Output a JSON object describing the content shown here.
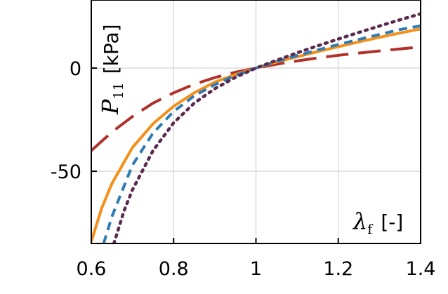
{
  "chart_data": {
    "type": "line",
    "xlim": [
      0.6,
      1.4
    ],
    "ylim": [
      -85,
      33
    ],
    "x_ticks": [
      0.6,
      0.8,
      1.0,
      1.2,
      1.4
    ],
    "x_tick_labels": [
      "0.6",
      "0.8",
      "1",
      "1.2",
      "1.4"
    ],
    "y_ticks": [
      0,
      -50
    ],
    "y_tick_labels": [
      "0",
      "-50"
    ],
    "ylabel": {
      "symbol": "P",
      "subscript": "11",
      "unit": "[kPa]"
    },
    "xlabel": {
      "symbol": "λ",
      "subscript": "f",
      "unit": "[-]"
    },
    "grid": true,
    "series": [
      {
        "color": "#b2302a",
        "dash": "32,14",
        "width": 4,
        "x": [
          0.6,
          0.65,
          0.7,
          0.75,
          0.8,
          0.85,
          0.9,
          0.95,
          1.0,
          1.05,
          1.1,
          1.15,
          1.2,
          1.25,
          1.3,
          1.35,
          1.4
        ],
        "y": [
          -40,
          -31,
          -23.5,
          -17,
          -12,
          -7.8,
          -4.6,
          -2.0,
          0,
          1.9,
          3.5,
          4.9,
          6.2,
          7.3,
          8.3,
          9.3,
          10.2
        ]
      },
      {
        "color": "#f39019",
        "dash": "none",
        "width": 4,
        "x": [
          0.6,
          0.625,
          0.65,
          0.7,
          0.75,
          0.8,
          0.85,
          0.9,
          0.95,
          1.0,
          1.05,
          1.1,
          1.15,
          1.2,
          1.25,
          1.3,
          1.35,
          1.4
        ],
        "y": [
          -84,
          -68,
          -56,
          -38.5,
          -27,
          -18.5,
          -12,
          -6.8,
          -3.1,
          0,
          2.9,
          5.5,
          8.0,
          10.4,
          12.7,
          14.9,
          17.0,
          19.0
        ]
      },
      {
        "color": "#2e7bb5",
        "dash": "12,8",
        "width": 4,
        "x": [
          0.63,
          0.65,
          0.7,
          0.75,
          0.8,
          0.85,
          0.9,
          0.95,
          1.0,
          1.05,
          1.1,
          1.15,
          1.2,
          1.25,
          1.3,
          1.35,
          1.4
        ],
        "y": [
          -85,
          -72,
          -47,
          -31.5,
          -21,
          -13.5,
          -8,
          -3.6,
          0,
          3.2,
          6.1,
          8.8,
          11.4,
          13.9,
          16.3,
          18.7,
          20.5
        ]
      },
      {
        "color": "#5a2a4e",
        "dash": "3,7",
        "width": 4.5,
        "x": [
          0.655,
          0.68,
          0.7,
          0.75,
          0.8,
          0.85,
          0.9,
          0.95,
          1.0,
          1.05,
          1.1,
          1.15,
          1.2,
          1.25,
          1.3,
          1.35,
          1.4
        ],
        "y": [
          -85,
          -69,
          -59,
          -40,
          -26.5,
          -17,
          -10,
          -4.5,
          0,
          3.8,
          7.4,
          10.8,
          14.1,
          17.3,
          20.4,
          23.4,
          26.3
        ]
      }
    ]
  }
}
